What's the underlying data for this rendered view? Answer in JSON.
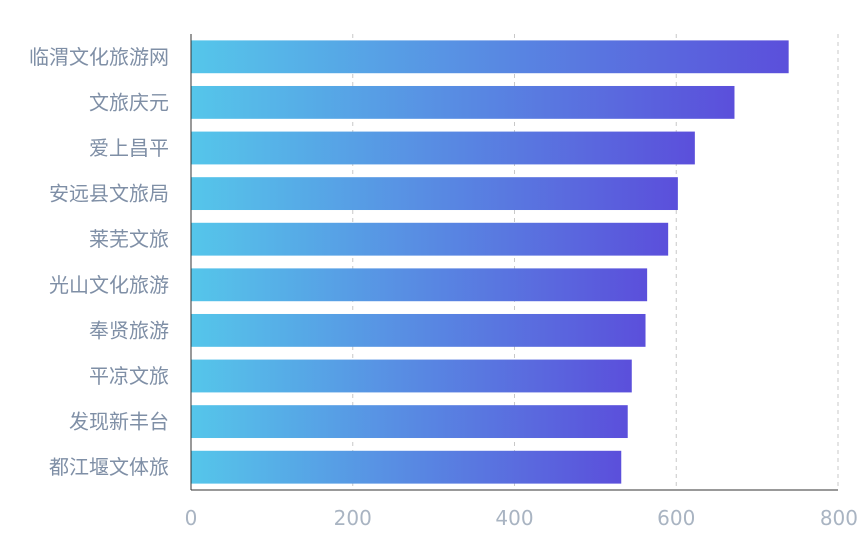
{
  "chart_data": {
    "type": "bar",
    "orientation": "horizontal",
    "title": "",
    "xlabel": "",
    "ylabel": "",
    "categories": [
      "临渭文化旅游网",
      "文旅庆元",
      "爱上昌平",
      "安远县文旅局",
      "莱芜文旅",
      "光山文化旅游",
      "奉贤旅游",
      "平凉文旅",
      "发现新丰台",
      "都江堰文体旅"
    ],
    "values": [
      739,
      672,
      623,
      602,
      590,
      564,
      562,
      545,
      540,
      532
    ],
    "xlim": [
      0,
      800
    ],
    "xticks": [
      0,
      200,
      400,
      600,
      800
    ],
    "grid": "vertical-dashed",
    "legend": "none",
    "colors": {
      "bar_start": "#55c6ea",
      "bar_end": "#5b4fdb",
      "grid": "#c8c8c8",
      "axis": "#333333",
      "label": "#7f8fa6",
      "tick": "#a9b4c2"
    }
  }
}
